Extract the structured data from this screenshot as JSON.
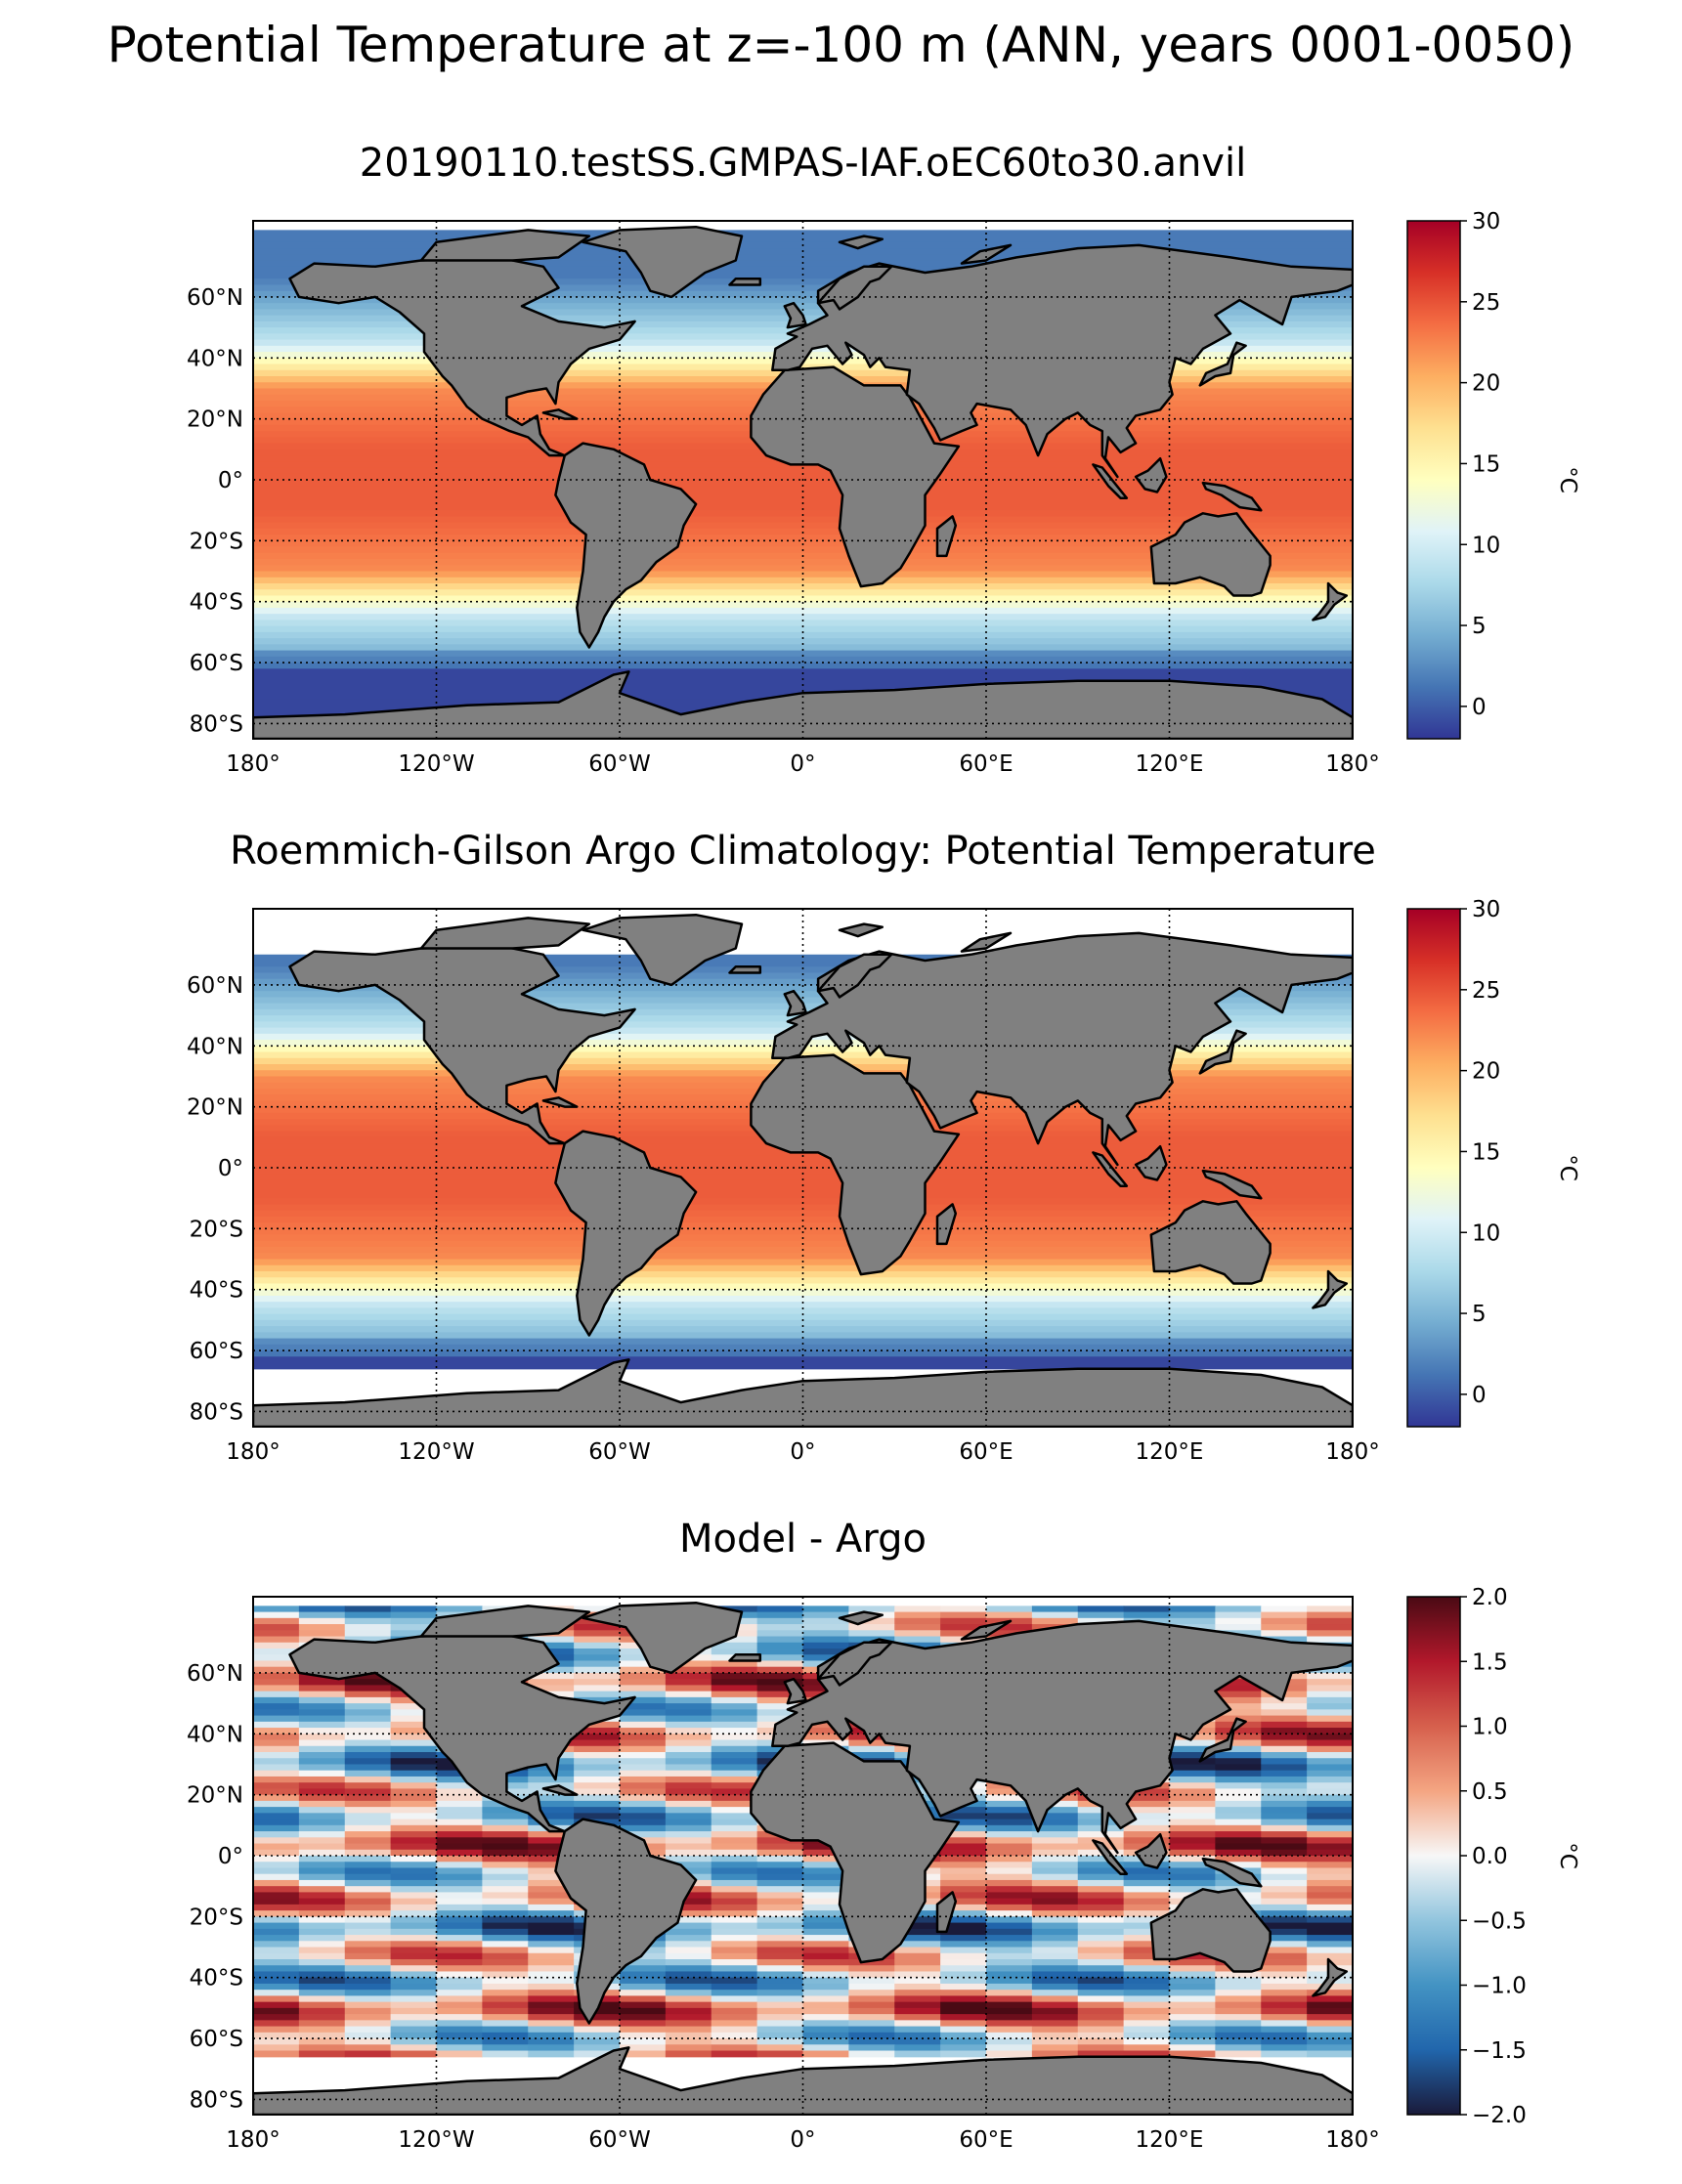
{
  "figure": {
    "suptitle": "Potential Temperature at z=-100 m (ANN, years 0001-0050)"
  },
  "chart_data": [
    {
      "type": "heatmap",
      "title": "20190110.testSS.GMPAS-IAF.oEC60to30.anvil",
      "x_ticks": [
        -180,
        -120,
        -60,
        0,
        60,
        120,
        180
      ],
      "x_tick_labels": [
        "180°",
        "120°W",
        "60°W",
        "0°",
        "60°E",
        "120°E",
        "180°"
      ],
      "y_ticks": [
        60,
        40,
        20,
        0,
        -20,
        -40,
        -60,
        -80
      ],
      "y_tick_labels": [
        "60°N",
        "40°N",
        "20°N",
        "0°",
        "20°S",
        "40°S",
        "60°S",
        "80°S"
      ],
      "xlim": [
        -180,
        180
      ],
      "ylim": [
        -85,
        85
      ],
      "grid": true,
      "colorbar": {
        "ticks": [
          30,
          25,
          20,
          15,
          10,
          5,
          0
        ],
        "tick_labels": [
          "30",
          "25",
          "20",
          "15",
          "10",
          "5",
          "0"
        ],
        "range": [
          -2,
          30
        ],
        "label": "°C",
        "colormap": "RdYlBu_r"
      },
      "land_color": "#808080"
    },
    {
      "type": "heatmap",
      "title": "Roemmich-Gilson Argo Climatology: Potential Temperature",
      "x_ticks": [
        -180,
        -120,
        -60,
        0,
        60,
        120,
        180
      ],
      "x_tick_labels": [
        "180°",
        "120°W",
        "60°W",
        "0°",
        "60°E",
        "120°E",
        "180°"
      ],
      "y_ticks": [
        60,
        40,
        20,
        0,
        -20,
        -40,
        -60,
        -80
      ],
      "y_tick_labels": [
        "60°N",
        "40°N",
        "20°N",
        "0°",
        "20°S",
        "40°S",
        "60°S",
        "80°S"
      ],
      "xlim": [
        -180,
        180
      ],
      "ylim": [
        -85,
        85
      ],
      "grid": true,
      "colorbar": {
        "ticks": [
          30,
          25,
          20,
          15,
          10,
          5,
          0
        ],
        "tick_labels": [
          "30",
          "25",
          "20",
          "15",
          "10",
          "5",
          "0"
        ],
        "range": [
          -2,
          30
        ],
        "label": "°C",
        "colormap": "RdYlBu_r"
      },
      "land_color": "#808080"
    },
    {
      "type": "heatmap",
      "title": "Model - Argo",
      "x_ticks": [
        -180,
        -120,
        -60,
        0,
        60,
        120,
        180
      ],
      "x_tick_labels": [
        "180°",
        "120°W",
        "60°W",
        "0°",
        "60°E",
        "120°E",
        "180°"
      ],
      "y_ticks": [
        60,
        40,
        20,
        0,
        -20,
        -40,
        -60,
        -80
      ],
      "y_tick_labels": [
        "60°N",
        "40°N",
        "20°N",
        "0°",
        "20°S",
        "40°S",
        "60°S",
        "80°S"
      ],
      "xlim": [
        -180,
        180
      ],
      "ylim": [
        -85,
        85
      ],
      "grid": true,
      "colorbar": {
        "ticks": [
          2.0,
          1.5,
          1.0,
          0.5,
          0.0,
          -0.5,
          -1.0,
          -1.5,
          -2.0
        ],
        "tick_labels": [
          "2.0",
          "1.5",
          "1.0",
          "0.5",
          "0.0",
          "−0.5",
          "−1.0",
          "−1.5",
          "−2.0"
        ],
        "range": [
          -2,
          2
        ],
        "label": "°C",
        "colormap": "RdBu_r"
      },
      "land_color": "#808080"
    }
  ]
}
